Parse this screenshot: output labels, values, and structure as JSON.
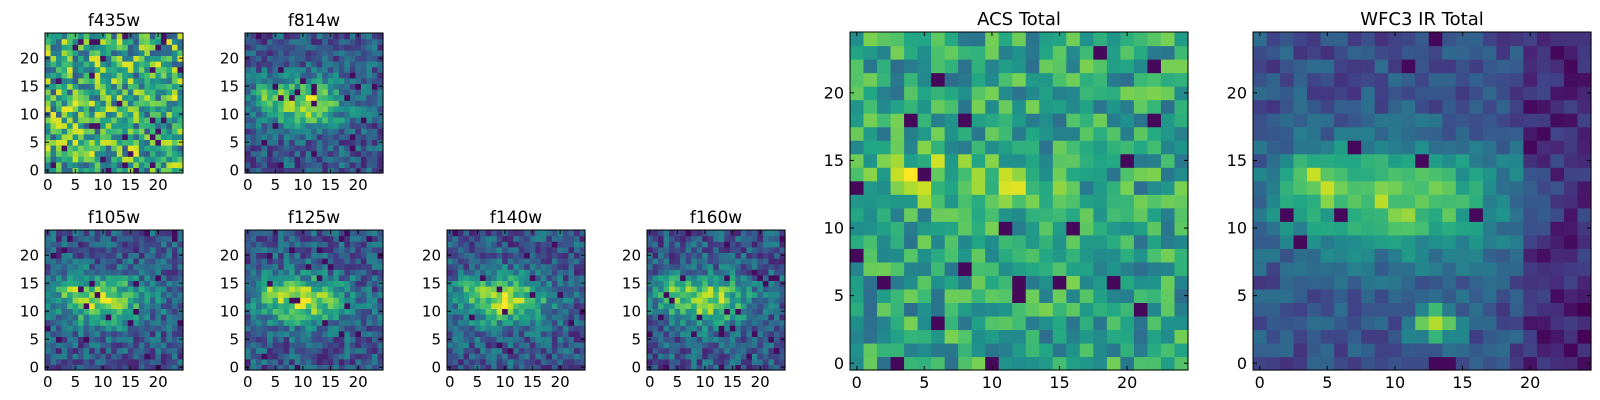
{
  "figure": {
    "colormap": "viridis",
    "colors": {
      "low": "#440154",
      "mid": "#21918c",
      "high": "#fde725",
      "frame": "#000000",
      "background": "#ffffff"
    }
  },
  "chart_data": [
    {
      "type": "heatmap",
      "title": "f435w",
      "grid_size": 25,
      "xlim": [
        -0.5,
        24.5
      ],
      "ylim": [
        -0.5,
        24.5
      ],
      "xticks": [
        0,
        5,
        10,
        15,
        20
      ],
      "yticks": [
        0,
        5,
        10,
        15,
        20
      ],
      "pattern": "noisy_high",
      "seed": 11
    },
    {
      "type": "heatmap",
      "title": "f814w",
      "grid_size": 25,
      "xlim": [
        -0.5,
        24.5
      ],
      "ylim": [
        -0.5,
        24.5
      ],
      "xticks": [
        0,
        5,
        10,
        15,
        20
      ],
      "yticks": [
        0,
        5,
        10,
        15,
        20
      ],
      "pattern": "blob",
      "seed": 23
    },
    {
      "type": "heatmap",
      "title": "f105w",
      "grid_size": 25,
      "xlim": [
        -0.5,
        24.5
      ],
      "ylim": [
        -0.5,
        24.5
      ],
      "xticks": [
        0,
        5,
        10,
        15,
        20
      ],
      "yticks": [
        0,
        5,
        10,
        15,
        20
      ],
      "pattern": "blob",
      "seed": 37
    },
    {
      "type": "heatmap",
      "title": "f125w",
      "grid_size": 25,
      "xlim": [
        -0.5,
        24.5
      ],
      "ylim": [
        -0.5,
        24.5
      ],
      "xticks": [
        0,
        5,
        10,
        15,
        20
      ],
      "yticks": [
        0,
        5,
        10,
        15,
        20
      ],
      "pattern": "blob",
      "seed": 41
    },
    {
      "type": "heatmap",
      "title": "f140w",
      "grid_size": 25,
      "xlim": [
        -0.5,
        24.5
      ],
      "ylim": [
        -0.5,
        24.5
      ],
      "xticks": [
        0,
        5,
        10,
        15,
        20
      ],
      "yticks": [
        0,
        5,
        10,
        15,
        20
      ],
      "pattern": "blob",
      "seed": 53
    },
    {
      "type": "heatmap",
      "title": "f160w",
      "grid_size": 25,
      "xlim": [
        -0.5,
        24.5
      ],
      "ylim": [
        -0.5,
        24.5
      ],
      "xticks": [
        0,
        5,
        10,
        15,
        20
      ],
      "yticks": [
        0,
        5,
        10,
        15,
        20
      ],
      "pattern": "blob",
      "seed": 67
    },
    {
      "type": "heatmap",
      "title": "ACS Total",
      "grid_size": 25,
      "xlim": [
        -0.5,
        24.5
      ],
      "ylim": [
        -0.5,
        24.5
      ],
      "xticks": [
        0,
        5,
        10,
        15,
        20
      ],
      "yticks": [
        0,
        5,
        10,
        15,
        20
      ],
      "pattern": "acs",
      "seed": 79
    },
    {
      "type": "heatmap",
      "title": "WFC3 IR Total",
      "grid_size": 25,
      "xlim": [
        -0.5,
        24.5
      ],
      "ylim": [
        -0.5,
        24.5
      ],
      "xticks": [
        0,
        5,
        10,
        15,
        20
      ],
      "yticks": [
        0,
        5,
        10,
        15,
        20
      ],
      "pattern": "ir_total",
      "seed": 97
    }
  ]
}
